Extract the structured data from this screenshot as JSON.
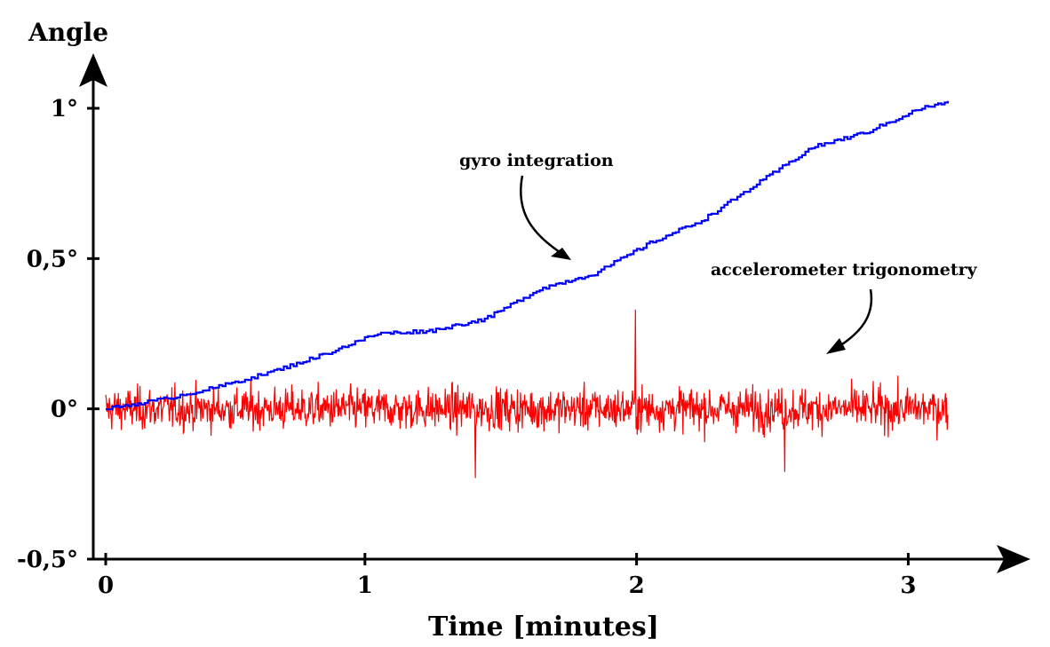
{
  "chart_data": {
    "type": "line",
    "ylabel": "Angle",
    "xlabel": "Time [minutes]",
    "xlim": [
      0,
      3.1
    ],
    "ylim": [
      -0.5,
      1
    ],
    "x_ticks": [
      {
        "value": 0,
        "label": "0"
      },
      {
        "value": 1,
        "label": "1"
      },
      {
        "value": 2,
        "label": "2"
      },
      {
        "value": 3,
        "label": "3"
      }
    ],
    "y_ticks": [
      {
        "value": 1,
        "label": "1°"
      },
      {
        "value": 0.5,
        "label": "0,5°"
      },
      {
        "value": 0,
        "label": "0°"
      },
      {
        "value": -0.5,
        "label": "-0,5°"
      }
    ],
    "annotations": [
      {
        "text": "gyro integration",
        "series": "gyro"
      },
      {
        "text": "accelerometer trigonometry",
        "series": "accel"
      }
    ],
    "grid": false,
    "series": [
      {
        "name": "gyro integration",
        "color": "#0000ff",
        "style": "staircase",
        "x": [
          0,
          0.2,
          0.4,
          0.6,
          0.8,
          1.0,
          1.2,
          1.4,
          1.6,
          1.8,
          1.9,
          2.0,
          2.2,
          2.4,
          2.6,
          2.8,
          3.0,
          3.1
        ],
        "y": [
          0,
          0.03,
          0.07,
          0.12,
          0.18,
          0.25,
          0.26,
          0.3,
          0.4,
          0.45,
          0.5,
          0.55,
          0.63,
          0.75,
          0.87,
          0.92,
          1.0,
          1.02
        ]
      },
      {
        "name": "accelerometer trigonometry",
        "color": "#ff0000",
        "style": "noise",
        "mean": 0,
        "typical_amplitude": 0.09,
        "max": 0.33,
        "min": -0.23,
        "x_range": [
          0,
          3.1
        ],
        "spikes": [
          {
            "x": 1.95,
            "y": 0.33
          },
          {
            "x": 1.36,
            "y": -0.23
          },
          {
            "x": 2.5,
            "y": -0.21
          }
        ]
      }
    ]
  }
}
